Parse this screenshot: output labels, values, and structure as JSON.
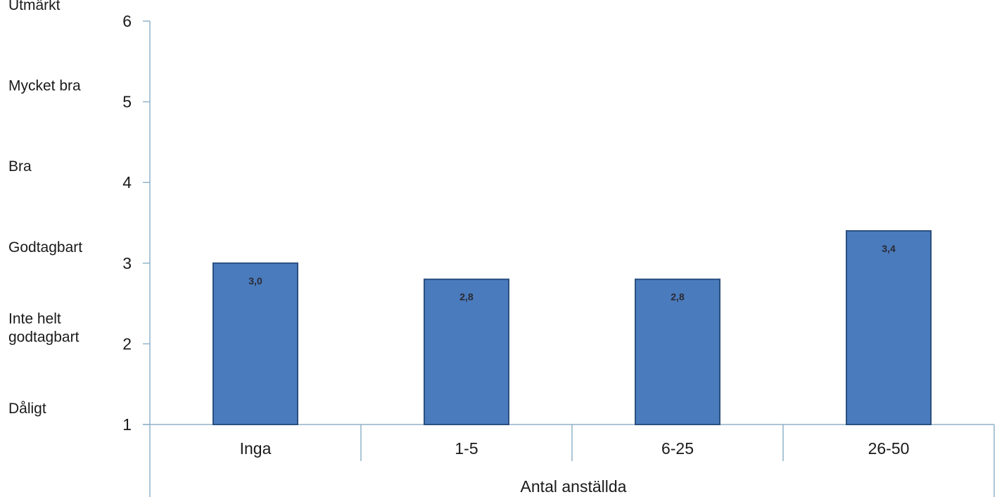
{
  "chart_data": {
    "type": "bar",
    "categories": [
      "Inga",
      "1-5",
      "6-25",
      "26-50"
    ],
    "values": [
      3.0,
      2.8,
      2.8,
      3.4
    ],
    "data_labels": [
      "3,0",
      "2,8",
      "2,8",
      "3,4"
    ],
    "xlabel": "Antal anställda",
    "ylabel": "",
    "ylim": [
      1,
      6
    ],
    "yticks": [
      1,
      2,
      3,
      4,
      5,
      6
    ],
    "rating_labels": [
      {
        "value": 6,
        "lines": [
          "Utmärkt"
        ]
      },
      {
        "value": 5,
        "lines": [
          "Mycket bra"
        ]
      },
      {
        "value": 4,
        "lines": [
          "Bra"
        ]
      },
      {
        "value": 3,
        "lines": [
          "Godtagbart"
        ]
      },
      {
        "value": 2,
        "lines": [
          "Inte helt",
          "godtagbart"
        ]
      },
      {
        "value": 1,
        "lines": [
          "Dåligt"
        ]
      }
    ],
    "colors": {
      "bar_fill": "#4a7bbd",
      "bar_stroke": "#2b4f80",
      "axis": "#8fb2c9",
      "text": "#1a1a1a"
    },
    "grid": false,
    "legend": "none"
  }
}
